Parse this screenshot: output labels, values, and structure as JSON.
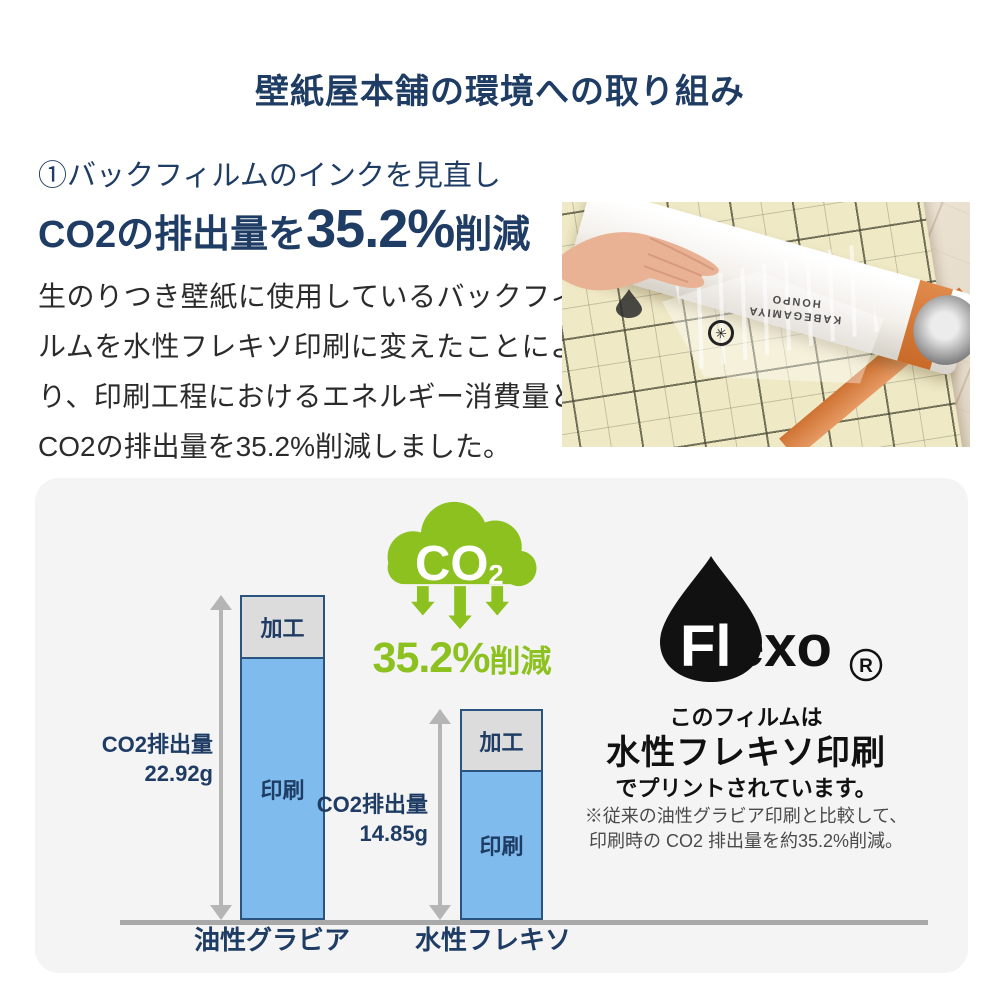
{
  "page": {
    "title": "壁紙屋本舗の環境への取り組み"
  },
  "section": {
    "heading": "①バックフィルムのインクを見直し",
    "co2_line": {
      "prefix": "CO2の排出量を",
      "highlight": "35.2%",
      "suffix": "削減"
    },
    "body": "生のりつき壁紙に使用しているバックフィルムを水性フレキソ印刷に変えたことにより、印刷工程におけるエネルギー消費量とCO2の排出量を35.2%削減しました。"
  },
  "photo": {
    "film_label_line1": "KABEGAMIYA",
    "film_label_line2": "HONPO",
    "emblem_glyph": "✳"
  },
  "badge": {
    "cloud_text": "CO",
    "cloud_text_sub": "2",
    "reduction_big": "35.2%",
    "reduction_small": "削減"
  },
  "flexo": {
    "logo_white": "Fl",
    "logo_black": "exo",
    "registered": "R",
    "line1": "このフィルムは",
    "line2": "水性フレキソ印刷",
    "line3": "でプリントされています。",
    "note1": "※従来の油性グラビア印刷と比較して、",
    "note2": "印刷時の CO2 排出量を約35.2%削減。"
  },
  "chart_data": {
    "type": "bar",
    "stacked": true,
    "categories": [
      "油性グラビア",
      "水性フレキソ"
    ],
    "series": [
      {
        "name": "加工",
        "values": [
          4.37,
          4.28
        ]
      },
      {
        "name": "印刷",
        "values": [
          18.55,
          10.57
        ]
      }
    ],
    "totals": [
      22.92,
      14.85
    ],
    "total_labels": [
      {
        "title": "CO2排出量",
        "value": "22.92g"
      },
      {
        "title": "CO2排出量",
        "value": "14.85g"
      }
    ],
    "unit": "g",
    "ylim": [
      0,
      24
    ],
    "grid": false,
    "legend": false
  },
  "colors": {
    "navy": "#1e3c64",
    "green": "#8cc11f",
    "bar_blue": "#80bbee",
    "bar_border": "#2a5480",
    "bar_gray": "#dcdcdc",
    "arrow_gray": "#b5b5b5",
    "axis_gray": "#a9a9a9",
    "panel_bg": "#f4f4f4",
    "text_dark": "#2b2b2b",
    "flexo_black": "#111111"
  }
}
